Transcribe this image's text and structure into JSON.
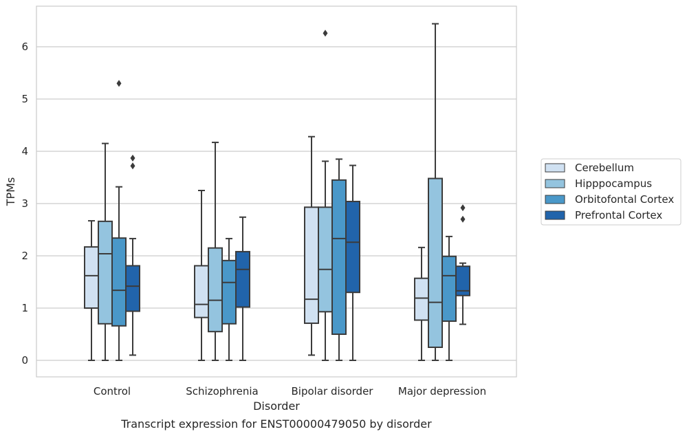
{
  "chart_data": {
    "type": "boxplot",
    "caption": "Transcript expression for ENST00000479050 by disorder",
    "xlabel": "Disorder",
    "ylabel": "TPMs",
    "ylim": [
      -0.3,
      6.8
    ],
    "yticks": [
      0,
      1,
      2,
      3,
      4,
      5,
      6
    ],
    "grid": "horizontal",
    "legend_position": "right",
    "categories": [
      "Control",
      "Schizophrenia",
      "Bipolar disorder",
      "Major depression"
    ],
    "series": [
      {
        "name": "Cerebellum",
        "color": "#d0e1f2",
        "boxes": [
          {
            "min": 0,
            "q1": 1.0,
            "median": 1.62,
            "q3": 2.17,
            "max": 2.67,
            "outliers": []
          },
          {
            "min": 0,
            "q1": 0.82,
            "median": 1.07,
            "q3": 1.81,
            "max": 3.25,
            "outliers": []
          },
          {
            "min": 0.1,
            "q1": 0.71,
            "median": 1.17,
            "q3": 2.93,
            "max": 4.28,
            "outliers": []
          },
          {
            "min": 0,
            "q1": 0.77,
            "median": 1.19,
            "q3": 1.57,
            "max": 2.16,
            "outliers": []
          }
        ]
      },
      {
        "name": "Hipppocampus",
        "color": "#94c4df",
        "boxes": [
          {
            "min": 0,
            "q1": 0.7,
            "median": 2.04,
            "q3": 2.66,
            "max": 4.15,
            "outliers": []
          },
          {
            "min": 0,
            "q1": 0.55,
            "median": 1.15,
            "q3": 2.15,
            "max": 4.17,
            "outliers": []
          },
          {
            "min": 0,
            "q1": 0.93,
            "median": 1.74,
            "q3": 2.93,
            "max": 3.81,
            "outliers": [
              6.26
            ]
          },
          {
            "min": 0,
            "q1": 0.25,
            "median": 1.11,
            "q3": 3.48,
            "max": 6.44,
            "outliers": []
          }
        ]
      },
      {
        "name": "Orbitofontal Cortex",
        "color": "#4a98c9",
        "boxes": [
          {
            "min": 0,
            "q1": 0.66,
            "median": 1.34,
            "q3": 2.34,
            "max": 3.32,
            "outliers": [
              5.3
            ]
          },
          {
            "min": 0,
            "q1": 0.7,
            "median": 1.49,
            "q3": 1.91,
            "max": 2.33,
            "outliers": []
          },
          {
            "min": 0,
            "q1": 0.5,
            "median": 2.33,
            "q3": 3.45,
            "max": 3.85,
            "outliers": []
          },
          {
            "min": 0,
            "q1": 0.75,
            "median": 1.62,
            "q3": 1.99,
            "max": 2.37,
            "outliers": []
          }
        ]
      },
      {
        "name": "Prefrontal Cortex",
        "color": "#2164ab",
        "boxes": [
          {
            "min": 0.1,
            "q1": 0.94,
            "median": 1.42,
            "q3": 1.81,
            "max": 2.33,
            "outliers": [
              3.72,
              3.87
            ]
          },
          {
            "min": 0,
            "q1": 1.02,
            "median": 1.74,
            "q3": 2.08,
            "max": 2.74,
            "outliers": []
          },
          {
            "min": 0,
            "q1": 1.3,
            "median": 2.26,
            "q3": 3.04,
            "max": 3.73,
            "outliers": []
          },
          {
            "min": 0.69,
            "q1": 1.24,
            "median": 1.33,
            "q3": 1.8,
            "max": 1.86,
            "outliers": [
              2.7,
              2.92
            ]
          }
        ]
      }
    ]
  }
}
